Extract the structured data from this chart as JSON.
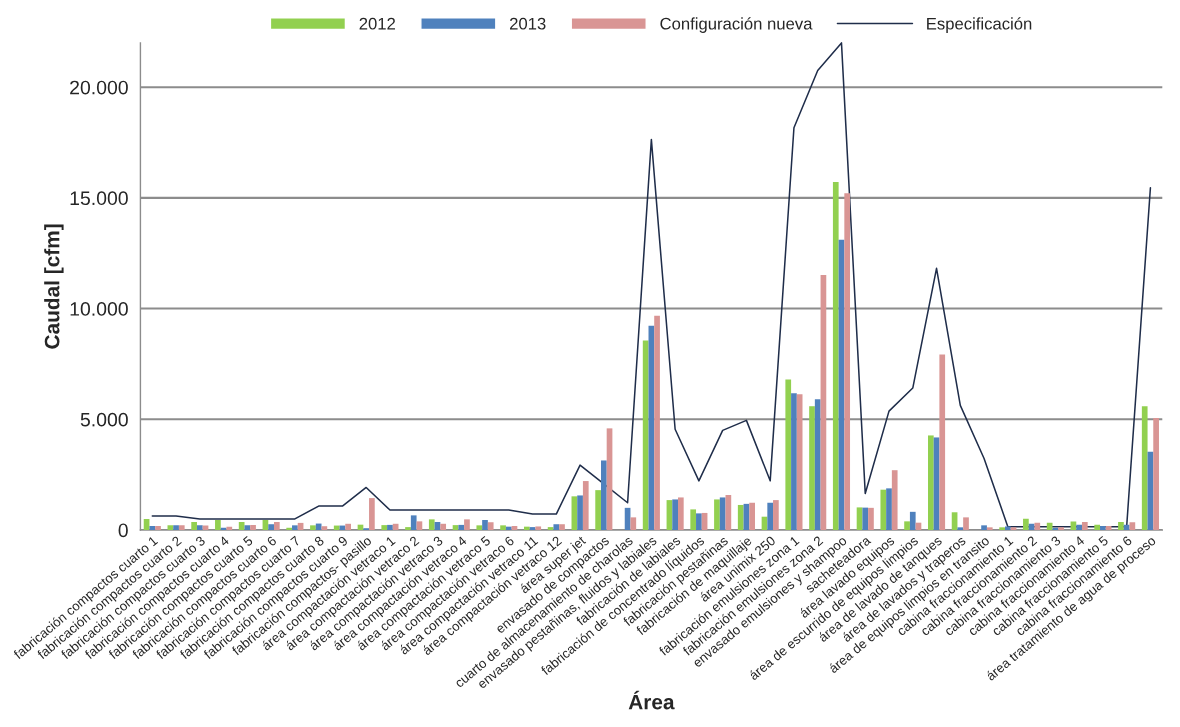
{
  "chart_data": {
    "type": "bar",
    "xlabel": "Área",
    "ylabel": "Caudal [cfm]",
    "categories": [
      "fabricación compactos cuarto 1",
      "fabricación compactos cuarto 2",
      "fabricación compactos cuarto 3",
      "fabricación compactos cuarto 4",
      "fabricación compactos cuarto 5",
      "fabricación compactos cuarto 6",
      "fabricación compactos cuarto 7",
      "fabricación compactos cuarto 8",
      "fabricación compactos cuarto 9",
      "fabricación compactos- pasillo",
      "área compactación vetraco 1",
      "área compactación vetraco 2",
      "área compactación vetraco 3",
      "área compactación vetraco 4",
      "área compactación vetraco 5",
      "área compactación vetraco 6",
      "área compactación vetraco 11",
      "área compactación vetraco 12",
      "área super jet",
      "envasado de compactos",
      "cuarto de almacenamiento de charolas",
      "envasado pestañinas, fluidos y labiales",
      "fabricación de labiales",
      "fabricación de concentrado líquidos",
      "fabricación pestañinas",
      "fabricación de maquillaje",
      "área unimix 250",
      "fabricación emulsiones zona 1",
      "fabricación emulsiones zona 2",
      "envasado emulsiones y shampoo",
      "sacheteadora",
      "área lavado equipos",
      "área de escurrido de equipos limpios",
      "área de lavado de tanques",
      "área de lavados y traperos",
      "área de equipos limpios en transito",
      "cabina fraccionamiento 1",
      "cabina fraccionamiento 2",
      "cabina fraccionamiento 3",
      "cabina fraccionamiento 4",
      "cabina fraccionamiento 5",
      "cabina fraccionamiento 6",
      "área tratamiento de agua de proceso"
    ],
    "series": [
      {
        "name": "2012",
        "color": "#92d050",
        "values": [
          500,
          210,
          360,
          450,
          360,
          450,
          100,
          210,
          200,
          240,
          220,
          130,
          480,
          220,
          210,
          210,
          150,
          130,
          1520,
          1800,
          0,
          8560,
          1350,
          930,
          1380,
          1130,
          600,
          6800,
          5590,
          15720,
          1020,
          1820,
          390,
          4270,
          800,
          0,
          120,
          510,
          330,
          380,
          240,
          360,
          5590
        ]
      },
      {
        "name": "2013",
        "color": "#4f81bd",
        "values": [
          180,
          210,
          210,
          100,
          210,
          260,
          210,
          290,
          200,
          80,
          230,
          660,
          360,
          230,
          450,
          150,
          130,
          260,
          1560,
          3140,
          1000,
          9220,
          1380,
          750,
          1470,
          1180,
          1230,
          6180,
          5900,
          13110,
          1010,
          1880,
          820,
          4180,
          120,
          210,
          160,
          280,
          90,
          240,
          180,
          240,
          3530
        ]
      },
      {
        "name": "Configuración nueva",
        "color": "#d99594",
        "values": [
          180,
          210,
          200,
          150,
          230,
          360,
          320,
          170,
          280,
          1440,
          280,
          390,
          280,
          480,
          350,
          180,
          160,
          260,
          2210,
          4590,
          570,
          9680,
          1470,
          770,
          1580,
          1230,
          1350,
          6130,
          11520,
          15210,
          1000,
          2700,
          330,
          7930,
          570,
          120,
          120,
          330,
          120,
          360,
          180,
          350,
          5060
        ]
      },
      {
        "name": "Especificación",
        "type": "line",
        "color": "#1f2d4a",
        "values": [
          630,
          630,
          500,
          500,
          500,
          500,
          500,
          1080,
          1080,
          1920,
          900,
          900,
          900,
          900,
          900,
          900,
          720,
          720,
          2930,
          2080,
          1230,
          17640,
          4550,
          2220,
          4500,
          4950,
          2220,
          18170,
          20750,
          22000,
          1650,
          5370,
          6410,
          11820,
          5630,
          3230,
          150,
          150,
          150,
          150,
          150,
          150,
          15460
        ]
      }
    ],
    "ylim": [
      0,
      22000
    ],
    "yticks": [
      {
        "value": 0,
        "label": "0"
      },
      {
        "value": 5000,
        "label": "5.000"
      },
      {
        "value": 10000,
        "label": "10.000"
      },
      {
        "value": 15000,
        "label": "15.000"
      },
      {
        "value": 20000,
        "label": "20.000"
      }
    ],
    "grid": "y",
    "legend": "top"
  }
}
